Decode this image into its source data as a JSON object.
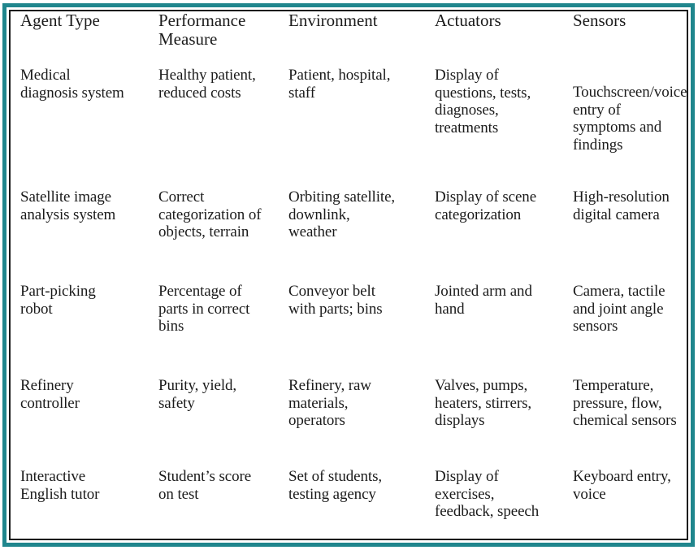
{
  "figure": {
    "description": "PEAS table: examples of agent types and their PEAS descriptions"
  },
  "colors": {
    "frame_teal": "#20868d",
    "frame_line": "#1c1c1c",
    "text": "#1b1b1b",
    "background": "#ffffff"
  },
  "table": {
    "columns": [
      "Agent Type",
      "Performance\nMeasure",
      "Environment",
      "Actuators",
      "Sensors"
    ],
    "rows": [
      {
        "cells": [
          "Medical\ndiagnosis system",
          "Healthy patient,\nreduced costs",
          "Patient, hospital,\nstaff",
          "Display of\nquestions, tests,\ndiagnoses,\ntreatments",
          "Touchscreen/voice\nentry of\nsymptoms and\nfindings"
        ]
      },
      {
        "cells": [
          "Satellite image\nanalysis system",
          "Correct\ncategorization of\nobjects, terrain",
          "Orbiting satellite,\ndownlink,\nweather",
          "Display of scene\ncategorization",
          "High-resolution\ndigital camera"
        ]
      },
      {
        "cells": [
          "Part-picking\nrobot",
          "Percentage of\nparts in correct\nbins",
          "Conveyor belt\nwith parts; bins",
          "Jointed arm and\nhand",
          "Camera, tactile\nand joint angle\nsensors"
        ]
      },
      {
        "cells": [
          "Refinery\ncontroller",
          "Purity, yield,\nsafety",
          "Refinery, raw\nmaterials,\noperators",
          "Valves, pumps,\nheaters, stirrers,\ndisplays",
          "Temperature,\npressure, flow,\nchemical sensors"
        ]
      },
      {
        "cells": [
          "Interactive\nEnglish tutor",
          "Student’s score\non test",
          "Set of students,\ntesting agency",
          "Display of\nexercises,\nfeedback, speech",
          "Keyboard entry,\nvoice"
        ]
      }
    ]
  }
}
